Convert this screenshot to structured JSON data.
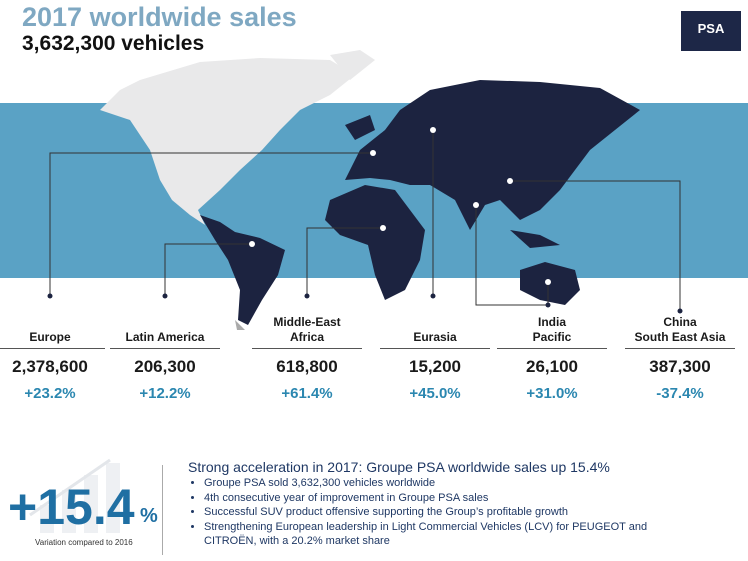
{
  "header": {
    "title": "2017 worldwide sales",
    "subtitle": "3,632,300 vehicles",
    "logo": "PSA"
  },
  "regions": [
    {
      "name": [
        "Europe"
      ],
      "sales": "2,378,600",
      "change": "+23.2%"
    },
    {
      "name": [
        "Latin America"
      ],
      "sales": "206,300",
      "change": "+12.2%"
    },
    {
      "name": [
        "Middle-East",
        "Africa"
      ],
      "sales": "618,800",
      "change": "+61.4%"
    },
    {
      "name": [
        "Eurasia"
      ],
      "sales": "15,200",
      "change": "+45.0%"
    },
    {
      "name": [
        "India",
        "Pacific"
      ],
      "sales": "26,100",
      "change": "+31.0%"
    },
    {
      "name": [
        "China",
        "South East Asia"
      ],
      "sales": "387,300",
      "change": "-37.4%"
    }
  ],
  "highlight": {
    "value": "+15.4",
    "unit": "%",
    "caption": "Variation compared to 2016"
  },
  "summary": {
    "heading": "Strong acceleration in 2017: Groupe PSA worldwide sales up 15.4%",
    "bullets": [
      "Groupe PSA sold 3,632,300 vehicles worldwide",
      "4th consecutive year of improvement in Groupe PSA sales",
      "Successful SUV product offensive supporting the Group’s profitable growth",
      "Strengthening European leadership in Light Commercial Vehicles (LCV) for PEUGEOT and CITROËN, with a 20.2% market share"
    ]
  }
}
